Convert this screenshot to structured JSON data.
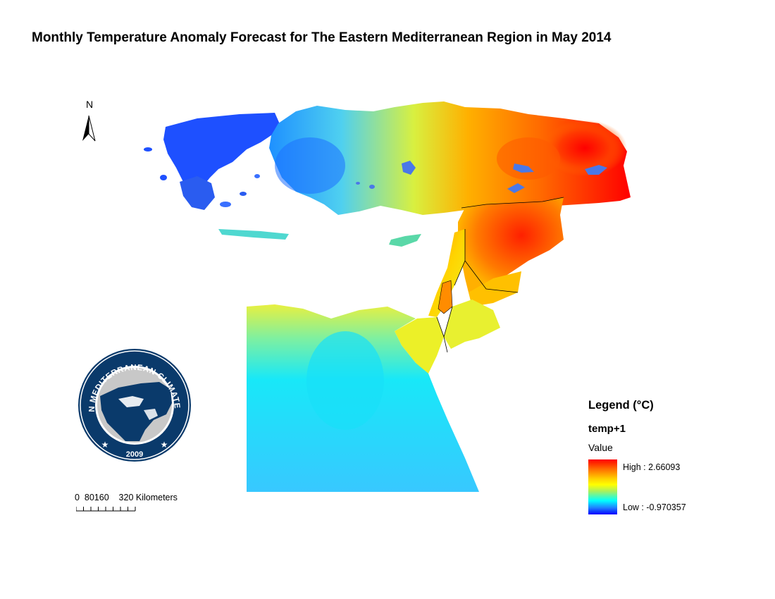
{
  "title": "Monthly Temperature Anomaly Forecast for The Eastern Mediterranean Region in May 2014",
  "north_arrow": {
    "letter": "N",
    "icon": "north-arrow-icon"
  },
  "logo": {
    "text": "EASTERN MEDITERRANEAN CLIMATE CENTRE",
    "year": "2009",
    "colors": {
      "ring": "#0a3a6b",
      "land": "#c8c8c8",
      "region": "#0a3a6b"
    }
  },
  "scale_bar": {
    "labels": "0  80160    320 Kilometers"
  },
  "legend": {
    "title": "Legend (°C)",
    "layer": "temp+1",
    "field": "Value",
    "high_label": "High : 2.66093",
    "low_label": "Low : -0.970357",
    "ramp_colors": [
      "#ff0000",
      "#ff7000",
      "#ffd000",
      "#ffff00",
      "#a8f060",
      "#00ffff",
      "#2080ff",
      "#0000ff"
    ]
  },
  "map": {
    "regions": {
      "greece": "cold",
      "western_turkey": "cool",
      "central_turkey": "warm",
      "eastern_turkey": "hot",
      "syria_iraq_border": "hot",
      "cyprus": "mild",
      "egypt": "cool",
      "sinai_levant": "warm"
    },
    "lake_color": "#4a78e8"
  }
}
